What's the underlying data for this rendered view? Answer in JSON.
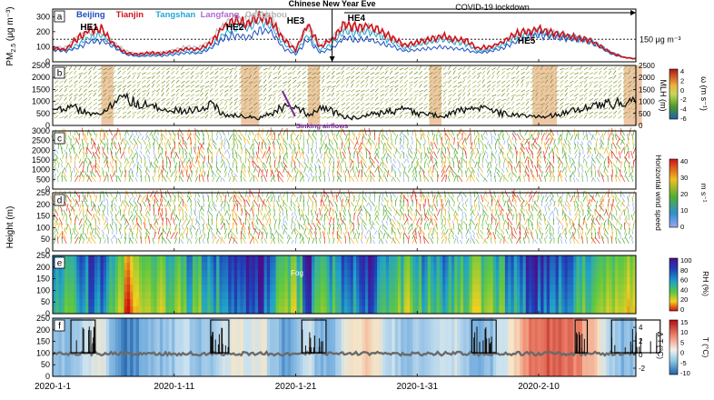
{
  "chart_data": {
    "type": "multi-panel",
    "x_dates": {
      "start": "2020-01-01",
      "end": "2020-02-18",
      "tick_labels": [
        "2020-1-1",
        "2020-1-11",
        "2020-1-21",
        "2020-1-31",
        "2020-2-10"
      ]
    },
    "panels": [
      {
        "id": "a",
        "type": "line",
        "ylabel": "PM2.5 (μg m⁻³)",
        "ylabel_main": "PM",
        "ylabel_sub": "2.5",
        "ylabel_unit": "(μg m⁻³)",
        "ylim": [
          0,
          350
        ],
        "yticks": [
          "0",
          "100",
          "200",
          "300"
        ],
        "threshold": {
          "value": 150,
          "label": "150 μg m⁻³"
        },
        "legend": [
          {
            "name": "Beijing",
            "color": "#1f4fbf"
          },
          {
            "name": "Tianjin",
            "color": "#d0121b"
          },
          {
            "name": "Tangshan",
            "color": "#22a7d6"
          },
          {
            "name": "Langfang",
            "color": "#b06ad0"
          },
          {
            "name": "Cangzhou",
            "color": "#b5b5b5"
          }
        ],
        "episodes": [
          {
            "label": "HE1",
            "date": "2020-01-04"
          },
          {
            "label": "HE2",
            "date": "2020-01-16"
          },
          {
            "label": "HE3",
            "date": "2020-01-21"
          },
          {
            "label": "HE4",
            "date": "2020-01-26"
          },
          {
            "label": "HE5",
            "date": "2020-02-09"
          }
        ],
        "annotations": {
          "new_year_eve": "Chinese New Year Eve",
          "new_year_date": "2020-01-24",
          "lockdown": "COVID-19 lockdown",
          "lockdown_start": "2020-01-25"
        },
        "series_daily": {
          "Tianjin": [
            95,
            80,
            150,
            210,
            220,
            120,
            60,
            50,
            60,
            55,
            70,
            90,
            80,
            120,
            230,
            270,
            250,
            300,
            270,
            150,
            80,
            250,
            100,
            150,
            250,
            230,
            240,
            200,
            160,
            110,
            130,
            150,
            170,
            150,
            140,
            90,
            100,
            130,
            180,
            200,
            215,
            200,
            180,
            160,
            150,
            110,
            60,
            30,
            20
          ],
          "Beijing": [
            80,
            70,
            90,
            130,
            140,
            100,
            50,
            35,
            40,
            40,
            50,
            60,
            55,
            90,
            150,
            180,
            160,
            210,
            200,
            90,
            50,
            150,
            60,
            90,
            160,
            140,
            150,
            120,
            100,
            70,
            80,
            90,
            100,
            90,
            80,
            60,
            70,
            90,
            130,
            160,
            180,
            170,
            160,
            150,
            140,
            100,
            50,
            30,
            20
          ],
          "Tangshan": [
            90,
            75,
            110,
            160,
            180,
            110,
            55,
            45,
            50,
            50,
            60,
            75,
            65,
            100,
            180,
            230,
            220,
            270,
            240,
            120,
            60,
            180,
            80,
            120,
            200,
            190,
            200,
            170,
            130,
            90,
            110,
            130,
            150,
            130,
            120,
            70,
            80,
            110,
            160,
            180,
            190,
            180,
            170,
            160,
            150,
            110,
            60,
            30,
            20
          ],
          "Cangzhou": [
            100,
            90,
            160,
            200,
            190,
            130,
            70,
            55,
            60,
            60,
            75,
            100,
            90,
            140,
            240,
            290,
            270,
            320,
            280,
            160,
            90,
            240,
            110,
            160,
            230,
            210,
            220,
            190,
            150,
            100,
            120,
            140,
            160,
            140,
            130,
            80,
            90,
            120,
            170,
            190,
            200,
            190,
            170,
            150,
            140,
            100,
            60,
            30,
            20
          ]
        }
      },
      {
        "id": "b",
        "type": "line+barbs",
        "ylabel": "MLH (m)",
        "ylim": [
          0,
          2500
        ],
        "yticks": [
          "0",
          "500",
          "1000",
          "1500",
          "2000",
          "2500"
        ],
        "colorbar": {
          "title": "ω (m s⁻¹)",
          "ticks": [
            "4",
            "2",
            "0",
            "-2",
            "-4",
            "-6"
          ]
        },
        "annotation": "Sinking airflows",
        "mlh_daily": [
          600,
          800,
          700,
          500,
          400,
          900,
          1200,
          900,
          800,
          700,
          650,
          600,
          700,
          900,
          500,
          400,
          350,
          300,
          500,
          800,
          900,
          400,
          700,
          600,
          350,
          300,
          450,
          500,
          600,
          700,
          500,
          450,
          400,
          500,
          700,
          800,
          600,
          500,
          450,
          400,
          350,
          400,
          500,
          600,
          700,
          800,
          900,
          1000,
          1100
        ],
        "bands": [
          [
            4,
            5
          ],
          [
            15.5,
            17
          ],
          [
            21,
            22
          ],
          [
            31,
            32
          ],
          [
            39.5,
            41.5
          ],
          [
            47,
            48.5
          ]
        ]
      },
      {
        "id": "c",
        "type": "barbs",
        "ylim": [
          0,
          3000
        ],
        "yticks": [
          "0",
          "500",
          "1000",
          "1500",
          "2000",
          "2500",
          "3000"
        ],
        "colorbar": {
          "title": "Horizontal wind speed",
          "unit": "m s⁻¹",
          "ticks": [
            "40",
            "30",
            "20",
            "10",
            "0"
          ]
        }
      },
      {
        "id": "d",
        "type": "barbs",
        "ylabel": "Height (m)",
        "ylim": [
          0,
          250
        ],
        "yticks": [
          "0",
          "50",
          "100",
          "150",
          "200",
          "250"
        ]
      },
      {
        "id": "e",
        "type": "heatmap",
        "ylim": [
          0,
          250
        ],
        "yticks": [
          "0",
          "50",
          "100",
          "150",
          "200",
          "250"
        ],
        "annotation": "Fog",
        "colorbar": {
          "title": "RH (%)",
          "ticks": [
            "100",
            "80",
            "60",
            "40",
            "20",
            "0"
          ]
        },
        "rh_daily": [
          60,
          55,
          70,
          80,
          85,
          40,
          25,
          30,
          35,
          45,
          50,
          60,
          55,
          65,
          80,
          90,
          85,
          95,
          70,
          40,
          50,
          90,
          45,
          65,
          75,
          80,
          85,
          70,
          60,
          50,
          55,
          65,
          70,
          60,
          55,
          40,
          50,
          60,
          75,
          85,
          90,
          80,
          70,
          65,
          55,
          45,
          35,
          30,
          40
        ]
      },
      {
        "id": "f",
        "type": "heatmap+bar",
        "ylim": [
          0,
          250
        ],
        "yticks": [
          "0",
          "50",
          "100",
          "150",
          "200",
          "250"
        ],
        "ylabel_right": "Δ T (°C)",
        "right_ticks": [
          "4",
          "2",
          "0",
          "-2"
        ],
        "colorbar": {
          "title": "T (°C)",
          "ticks": [
            "15",
            "10",
            "5",
            "0",
            "-5",
            "-10"
          ]
        },
        "temp_daily": [
          -4,
          -3,
          -2,
          0,
          1,
          -5,
          -8,
          -6,
          -4,
          -3,
          -2,
          -1,
          -3,
          -2,
          0,
          2,
          1,
          3,
          -2,
          -6,
          -4,
          0,
          -5,
          -3,
          2,
          3,
          4,
          1,
          -1,
          -3,
          -2,
          0,
          1,
          0,
          -2,
          -5,
          -3,
          0,
          4,
          8,
          10,
          11,
          9,
          8,
          6,
          2,
          -2,
          -4,
          -3
        ],
        "boxes": [
          [
            1.5,
            3.5
          ],
          [
            13,
            14.5
          ],
          [
            20.5,
            22.5
          ],
          [
            34.5,
            36.5
          ],
          [
            43,
            44
          ],
          [
            46,
            50
          ]
        ]
      }
    ]
  }
}
